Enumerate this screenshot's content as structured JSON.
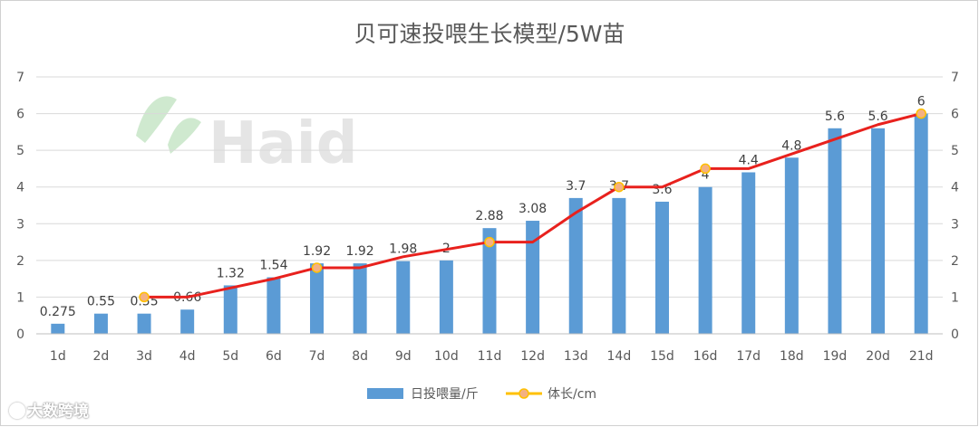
{
  "watermark": {
    "brand": "Haid",
    "corner_text": "大数跨境"
  },
  "chart_data": {
    "type": "bar+line",
    "title": "贝可速投喂生长模型/5W苗",
    "categories": [
      "1d",
      "2d",
      "3d",
      "4d",
      "5d",
      "6d",
      "7d",
      "8d",
      "9d",
      "10d",
      "11d",
      "12d",
      "13d",
      "14d",
      "15d",
      "16d",
      "17d",
      "18d",
      "19d",
      "20d",
      "21d"
    ],
    "series": [
      {
        "name": "日投喂量/斤",
        "type": "bar",
        "color": "#5b9bd5",
        "values": [
          0.275,
          0.55,
          0.55,
          0.66,
          1.32,
          1.54,
          1.92,
          1.92,
          1.98,
          2,
          2.88,
          3.08,
          3.7,
          3.7,
          3.6,
          4,
          4.4,
          4.8,
          5.6,
          5.6,
          6
        ],
        "labels": [
          "0.275",
          "0.55",
          "0.55",
          "0.66",
          "1.32",
          "1.54",
          "1.92",
          "1.92",
          "1.98",
          "2",
          "2.88",
          "3.08",
          "3.7",
          "3.7",
          "3.6",
          "4",
          "4.4",
          "4.8",
          "5.6",
          "5.6",
          "6"
        ]
      },
      {
        "name": "体长/cm",
        "type": "line",
        "color": "#e8211d",
        "marker_color": "#f4b183",
        "marker_edge": "#ffc000",
        "values": [
          null,
          null,
          1,
          1,
          1.25,
          1.5,
          1.8,
          1.8,
          2.1,
          2.3,
          2.5,
          2.5,
          3.3,
          4,
          4,
          4.5,
          4.5,
          4.9,
          5.3,
          5.7,
          6
        ],
        "markers": [
          2,
          6,
          10,
          13,
          15,
          20
        ]
      }
    ],
    "ylim": [
      0,
      7
    ],
    "yticks": [
      "0",
      "1",
      "2",
      "3",
      "4",
      "5",
      "6",
      "7"
    ],
    "y2ticks": [
      "0",
      "1",
      "2",
      "3",
      "4",
      "5",
      "6",
      "7"
    ],
    "grid": true,
    "legend": "bottom-center"
  }
}
